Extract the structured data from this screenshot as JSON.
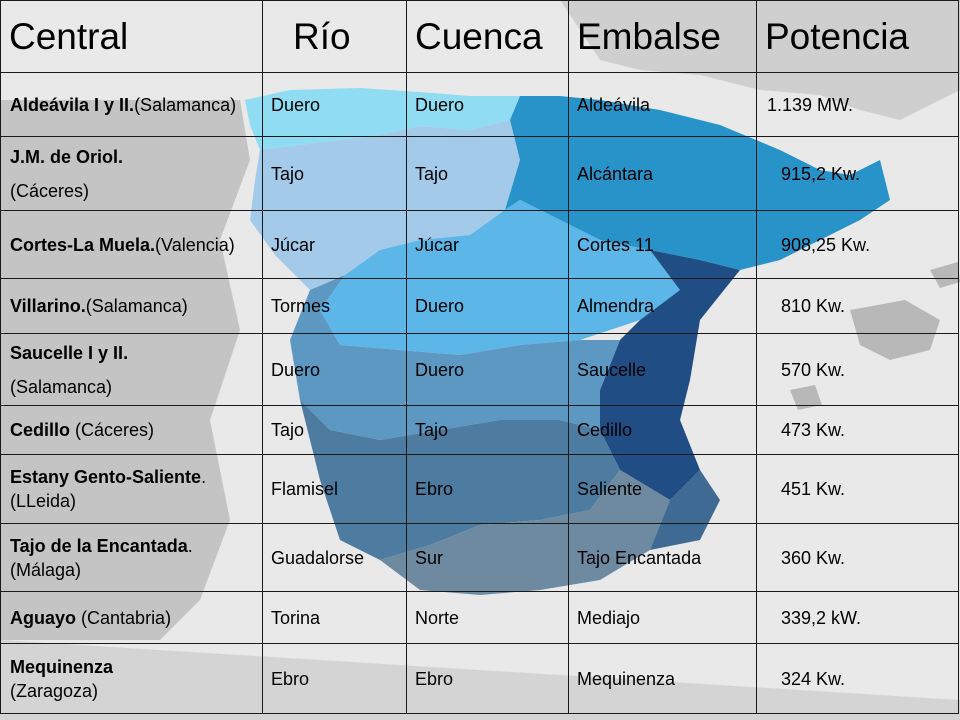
{
  "headers": {
    "central": "Central",
    "rio": "Río",
    "cuenca": "Cuenca",
    "embalse": "Embalse",
    "potencia": "Potencia"
  },
  "rows": [
    {
      "central_name": "Aldeávila I y II.",
      "central_loc": "(Salamanca)",
      "rio": "Duero",
      "cuenca": "Duero",
      "embalse": "Aldeávila",
      "potencia": "1.139 MW."
    },
    {
      "central_name": "J.M. de Oriol.",
      "central_loc": "(Cáceres)",
      "rio": "Tajo",
      "cuenca": "Tajo",
      "embalse": "Alcántara",
      "potencia": "915,2 Kw."
    },
    {
      "central_name": "Cortes-La Muela.",
      "central_loc": "(Valencia)",
      "rio": "Júcar",
      "cuenca": "Júcar",
      "embalse": "Cortes 11",
      "potencia": "908,25 Kw."
    },
    {
      "central_name": "Villarino.",
      "central_loc": "(Salamanca)",
      "rio": "Tormes",
      "cuenca": "Duero",
      "embalse": "Almendra",
      "potencia": "810 Kw."
    },
    {
      "central_name": "Saucelle I y II.",
      "central_loc": "(Salamanca)",
      "rio": "Duero",
      "cuenca": "Duero",
      "embalse": "Saucelle",
      "potencia": "570 Kw."
    },
    {
      "central_name": "Cedillo",
      "central_loc": "(Cáceres)",
      "rio": "Tajo",
      "cuenca": "Tajo",
      "embalse": "Cedillo",
      "potencia": "473 Kw."
    },
    {
      "central_name": "Estany Gento-Saliente",
      "central_loc": ". (LLeida)",
      "rio": "Flamisel",
      "cuenca": "Ebro",
      "embalse": "Saliente",
      "potencia": "451 Kw."
    },
    {
      "central_name": "Tajo de la Encantada",
      "central_loc": ". (Málaga)",
      "rio": "Guadalorse",
      "cuenca": "Sur",
      "embalse": "Tajo Encantada",
      "potencia": "360 Kw."
    },
    {
      "central_name": "Aguayo",
      "central_loc": "(Cantabria)",
      "rio": "Torina",
      "cuenca": "Norte",
      "embalse": "Mediajo",
      "potencia": "339,2 kW."
    },
    {
      "central_name": "Mequinenza",
      "central_loc": "(Zaragoza)",
      "rio": "Ebro",
      "cuenca": "Ebro",
      "embalse": "Mequinenza",
      "potencia": "324 Kw."
    }
  ],
  "map_colors": {
    "background": "#e9e9e9",
    "land_gray": "#c8c8c8",
    "norte": "#7fd8f2",
    "ebro": "#2490c8",
    "duero": "#9ec8e8",
    "tajo": "#5ab4e6",
    "jucar": "#1f4f86",
    "guadiana": "#5b97c1",
    "guadalquivir": "#4d7a9e",
    "sur": "#6f8ba2",
    "cataluna": "#2a8fc8"
  }
}
